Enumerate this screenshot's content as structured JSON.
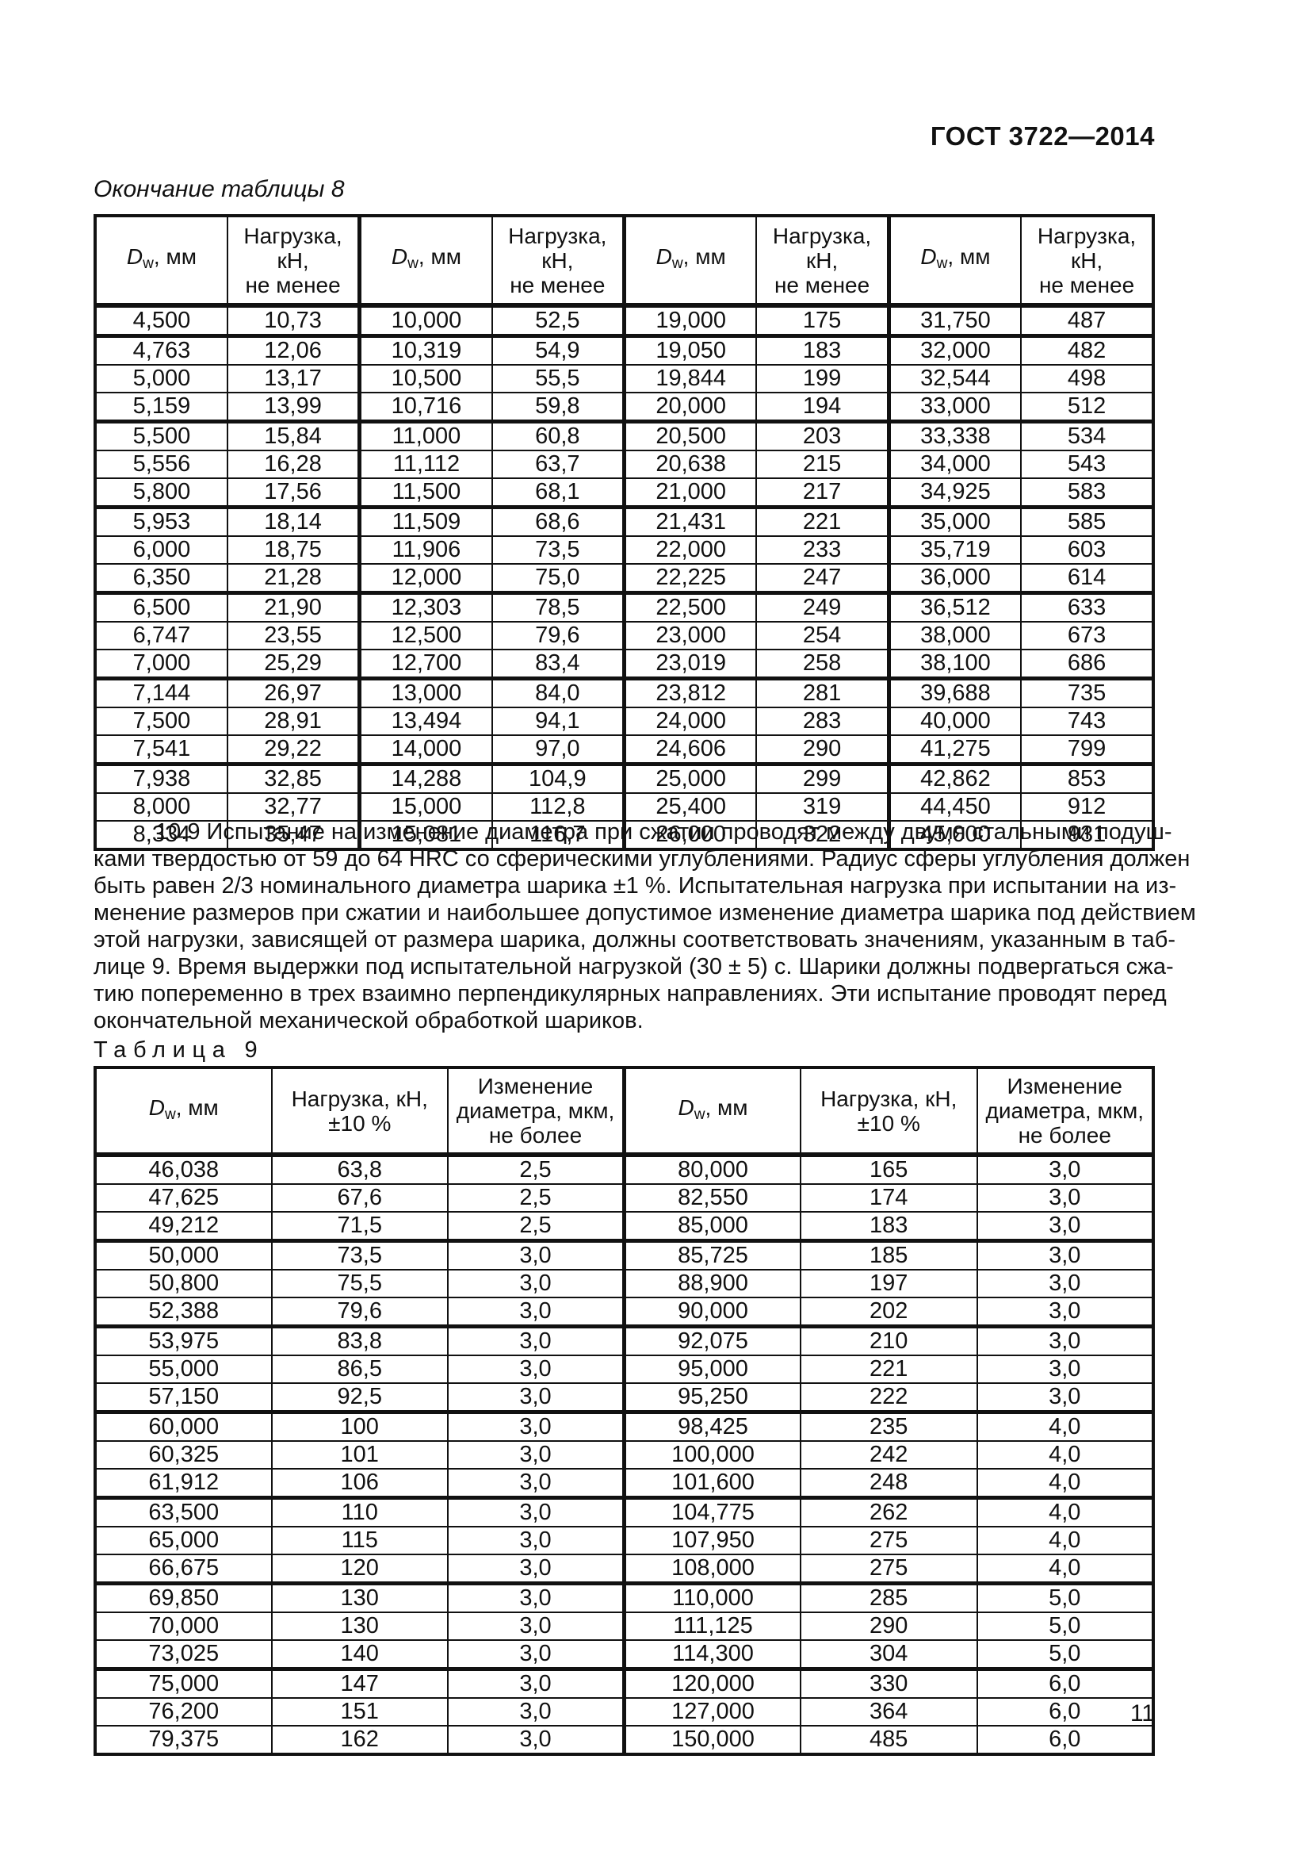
{
  "page": {
    "doc_code": "ГОСТ 3722—2014",
    "page_number": "11"
  },
  "table8": {
    "caption": "Окончание таблицы 8",
    "dw_header": {
      "symbol": "D",
      "subscript": "w",
      "unit": ", мм"
    },
    "load_header": "Нагрузка,\nкН,\nне менее",
    "columns_pattern": [
      "dw",
      "load",
      "dw",
      "load",
      "dw",
      "load",
      "dw",
      "load"
    ],
    "thick_after_rows": [
      0,
      3,
      6,
      9,
      12,
      15
    ],
    "rows": [
      [
        "4,500",
        "10,73",
        "10,000",
        "52,5",
        "19,000",
        "175",
        "31,750",
        "487"
      ],
      [
        "4,763",
        "12,06",
        "10,319",
        "54,9",
        "19,050",
        "183",
        "32,000",
        "482"
      ],
      [
        "5,000",
        "13,17",
        "10,500",
        "55,5",
        "19,844",
        "199",
        "32,544",
        "498"
      ],
      [
        "5,159",
        "13,99",
        "10,716",
        "59,8",
        "20,000",
        "194",
        "33,000",
        "512"
      ],
      [
        "5,500",
        "15,84",
        "11,000",
        "60,8",
        "20,500",
        "203",
        "33,338",
        "534"
      ],
      [
        "5,556",
        "16,28",
        "11,112",
        "63,7",
        "20,638",
        "215",
        "34,000",
        "543"
      ],
      [
        "5,800",
        "17,56",
        "11,500",
        "68,1",
        "21,000",
        "217",
        "34,925",
        "583"
      ],
      [
        "5,953",
        "18,14",
        "11,509",
        "68,6",
        "21,431",
        "221",
        "35,000",
        "585"
      ],
      [
        "6,000",
        "18,75",
        "11,906",
        "73,5",
        "22,000",
        "233",
        "35,719",
        "603"
      ],
      [
        "6,350",
        "21,28",
        "12,000",
        "75,0",
        "22,225",
        "247",
        "36,000",
        "614"
      ],
      [
        "6,500",
        "21,90",
        "12,303",
        "78,5",
        "22,500",
        "249",
        "36,512",
        "633"
      ],
      [
        "6,747",
        "23,55",
        "12,500",
        "79,6",
        "23,000",
        "254",
        "38,000",
        "673"
      ],
      [
        "7,000",
        "25,29",
        "12,700",
        "83,4",
        "23,019",
        "258",
        "38,100",
        "686"
      ],
      [
        "7,144",
        "26,97",
        "13,000",
        "84,0",
        "23,812",
        "281",
        "39,688",
        "735"
      ],
      [
        "7,500",
        "28,91",
        "13,494",
        "94,1",
        "24,000",
        "283",
        "40,000",
        "743"
      ],
      [
        "7,541",
        "29,22",
        "14,000",
        "97,0",
        "24,606",
        "290",
        "41,275",
        "799"
      ],
      [
        "7,938",
        "32,85",
        "14,288",
        "104,9",
        "25,000",
        "299",
        "42,862",
        "853"
      ],
      [
        "8,000",
        "32,77",
        "15,000",
        "112,8",
        "25,400",
        "319",
        "44,450",
        "912"
      ],
      [
        "8,334",
        "35,47",
        "15,081",
        "116,7",
        "26,000",
        "322",
        "45,000",
        "931"
      ]
    ]
  },
  "section_10_9": {
    "lines": [
      "10.9 Испытание на изменение диаметра при сжатии проводят между двумя стальными подуш-",
      "ками твердостью от 59 до 64 HRC со сферическими углублениями. Радиус сферы углубления должен",
      "быть равен 2/3 номинального диаметра шарика ±1 %. Испытательная нагрузка при испытании на из-",
      "менение размеров при сжатии и наибольшее допустимое изменение диаметра шарика под действием",
      "этой нагрузки, зависящей от размера шарика, должны соответствовать значениям, указанным в таб-",
      "лице 9. Время выдержки под испытательной нагрузкой (30 ± 5) с. Шарики должны подвергаться сжа-",
      "тию попеременно в трех взаимно перпендикулярных направлениях. Эти испытание проводят перед",
      "окончательной механической обработкой шариков."
    ]
  },
  "table9": {
    "caption_word": "Таблица",
    "caption_number": "9",
    "dw_header": {
      "symbol": "D",
      "subscript": "w",
      "unit": ", мм"
    },
    "load_header": "Нагрузка, кН,\n±10 %",
    "change_header": "Изменение\nдиаметра, мкм,\nне более",
    "columns_pattern": [
      "dw",
      "load",
      "change",
      "dw",
      "load",
      "change"
    ],
    "thick_after_rows": [
      2,
      5,
      8,
      11,
      14,
      17
    ],
    "rows": [
      [
        "46,038",
        "63,8",
        "2,5",
        "80,000",
        "165",
        "3,0"
      ],
      [
        "47,625",
        "67,6",
        "2,5",
        "82,550",
        "174",
        "3,0"
      ],
      [
        "49,212",
        "71,5",
        "2,5",
        "85,000",
        "183",
        "3,0"
      ],
      [
        "50,000",
        "73,5",
        "3,0",
        "85,725",
        "185",
        "3,0"
      ],
      [
        "50,800",
        "75,5",
        "3,0",
        "88,900",
        "197",
        "3,0"
      ],
      [
        "52,388",
        "79,6",
        "3,0",
        "90,000",
        "202",
        "3,0"
      ],
      [
        "53,975",
        "83,8",
        "3,0",
        "92,075",
        "210",
        "3,0"
      ],
      [
        "55,000",
        "86,5",
        "3,0",
        "95,000",
        "221",
        "3,0"
      ],
      [
        "57,150",
        "92,5",
        "3,0",
        "95,250",
        "222",
        "3,0"
      ],
      [
        "60,000",
        "100",
        "3,0",
        "98,425",
        "235",
        "4,0"
      ],
      [
        "60,325",
        "101",
        "3,0",
        "100,000",
        "242",
        "4,0"
      ],
      [
        "61,912",
        "106",
        "3,0",
        "101,600",
        "248",
        "4,0"
      ],
      [
        "63,500",
        "110",
        "3,0",
        "104,775",
        "262",
        "4,0"
      ],
      [
        "65,000",
        "115",
        "3,0",
        "107,950",
        "275",
        "4,0"
      ],
      [
        "66,675",
        "120",
        "3,0",
        "108,000",
        "275",
        "4,0"
      ],
      [
        "69,850",
        "130",
        "3,0",
        "110,000",
        "285",
        "5,0"
      ],
      [
        "70,000",
        "130",
        "3,0",
        "111,125",
        "290",
        "5,0"
      ],
      [
        "73,025",
        "140",
        "3,0",
        "114,300",
        "304",
        "5,0"
      ],
      [
        "75,000",
        "147",
        "3,0",
        "120,000",
        "330",
        "6,0"
      ],
      [
        "76,200",
        "151",
        "3,0",
        "127,000",
        "364",
        "6,0"
      ],
      [
        "79,375",
        "162",
        "3,0",
        "150,000",
        "485",
        "6,0"
      ]
    ]
  }
}
